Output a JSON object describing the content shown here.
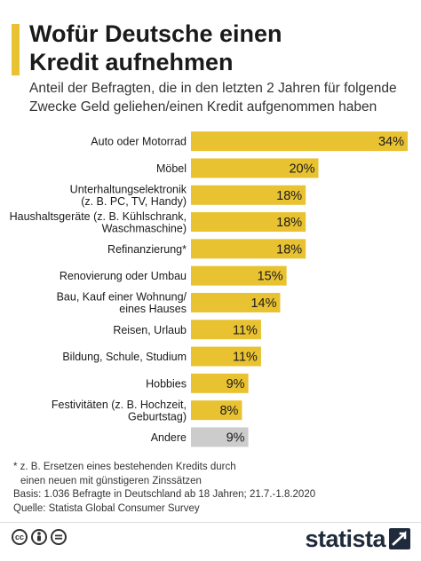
{
  "header": {
    "title_line1": "Wofür Deutsche einen",
    "title_line2": "Kredit aufnehmen",
    "subtitle_line1": "Anteil der Befragten, die in den letzten 2 Jahren für folgende",
    "subtitle_line2": "Zwecke Geld geliehen/einen Kredit aufgenommen haben"
  },
  "colors": {
    "bar": "#e9c232",
    "bar_other": "#cccccc",
    "accent": "#e9c232"
  },
  "chart_data": {
    "type": "bar",
    "orientation": "horizontal",
    "categories": [
      [
        "Auto oder Motorrad"
      ],
      [
        "Möbel"
      ],
      [
        "Unterhaltungselektronik",
        "(z. B. PC, TV, Handy)"
      ],
      [
        "Haushaltsgeräte (z. B. Kühlschrank,",
        "Waschmaschine)"
      ],
      [
        "Refinanzierung*"
      ],
      [
        "Renovierung oder Umbau"
      ],
      [
        "Bau, Kauf einer Wohnung/",
        "eines Hauses"
      ],
      [
        "Reisen, Urlaub"
      ],
      [
        "Bildung, Schule, Studium"
      ],
      [
        "Hobbies"
      ],
      [
        "Festivitäten (z. B. Hochzeit,",
        "Geburtstag)"
      ],
      [
        "Andere"
      ]
    ],
    "values": [
      34,
      20,
      18,
      18,
      18,
      15,
      14,
      11,
      11,
      9,
      8,
      9
    ],
    "value_labels": [
      "34%",
      "20%",
      "18%",
      "18%",
      "18%",
      "15%",
      "14%",
      "11%",
      "11%",
      "9%",
      "8%",
      "9%"
    ],
    "highlight_gray_index": 11,
    "xlim": [
      0,
      34
    ]
  },
  "footer": {
    "note_line1": "* z. B. Ersetzen eines bestehenden Kredits durch",
    "note_line2": "einen neuen mit günstigeren Zinssätzen",
    "basis": "Basis: 1.036 Befragte in Deutschland ab 18 Jahren; 21.7.-1.8.2020",
    "source": "Quelle: Statista Global Consumer Survey",
    "brand": "statista",
    "license_icons": [
      "cc-icon",
      "by-icon",
      "nd-icon"
    ]
  }
}
